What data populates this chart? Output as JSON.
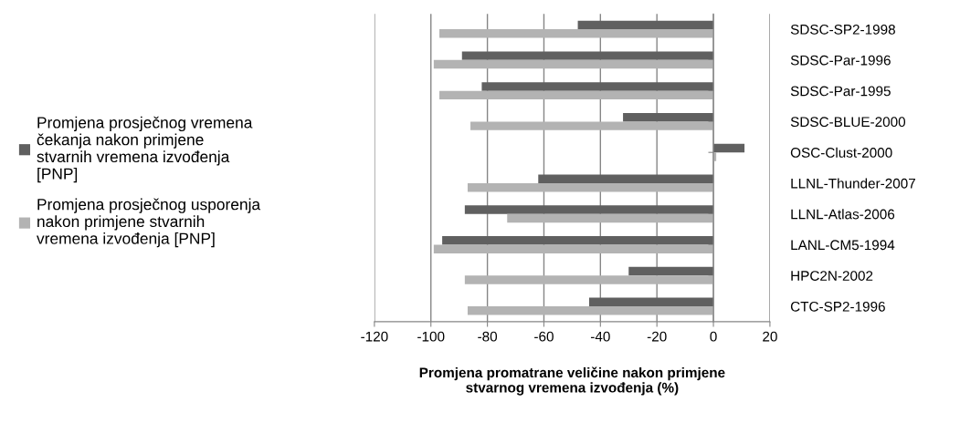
{
  "chart_data": {
    "type": "bar",
    "orientation": "horizontal",
    "xlabel": "Promjena promatrane veličine nakon primjene stvarnog vremena izvođenja (%)",
    "categories": [
      "SDSC-SP2-1998",
      "SDSC-Par-1996",
      "SDSC-Par-1995",
      "SDSC-BLUE-2000",
      "OSC-Clust-2000",
      "LLNL-Thunder-2007",
      "LLNL-Atlas-2006",
      "LANL-CM5-1994",
      "HPC2N-2002",
      "CTC-SP2-1996"
    ],
    "series": [
      {
        "name": "Promjena prosječnog vremena čekanja nakon primjene stvarnih vremena izvođenja [PNP]",
        "color": "#606060",
        "values": [
          -48,
          -89,
          -82,
          -32,
          11,
          -62,
          -88,
          -96,
          -30,
          -44
        ]
      },
      {
        "name": "Promjena prosječnog usporenja nakon primjene stvarnih vremena izvođenja [PNP]",
        "color": "#b3b3b3",
        "values": [
          -97,
          -99,
          -97,
          -86,
          1,
          -87,
          -73,
          -99,
          -88,
          -87
        ]
      }
    ],
    "xlim": [
      -120,
      20
    ],
    "xticks": [
      -120,
      -100,
      -80,
      -60,
      -40,
      -20,
      0,
      20
    ],
    "grid": "x",
    "legend": "left"
  }
}
